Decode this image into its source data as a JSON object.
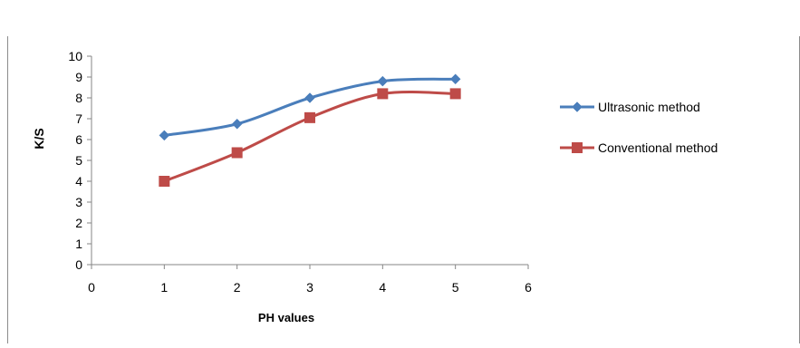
{
  "chart_data": {
    "type": "line",
    "title": "",
    "xlabel": "PH values",
    "ylabel": "K/S",
    "xlim": [
      0,
      6
    ],
    "ylim": [
      0,
      10
    ],
    "xticks": [
      0,
      1,
      2,
      3,
      4,
      5,
      6
    ],
    "yticks": [
      0,
      1,
      2,
      3,
      4,
      5,
      6,
      7,
      8,
      9,
      10
    ],
    "grid": false,
    "legend_position": "right",
    "series": [
      {
        "name": "Ultrasonic method",
        "color": "#4a7ebb",
        "marker": "diamond",
        "x": [
          1,
          2,
          3,
          4,
          5
        ],
        "y": [
          6.2,
          6.75,
          8.0,
          8.8,
          8.9
        ]
      },
      {
        "name": "Conventional method",
        "color": "#be4b48",
        "marker": "square",
        "x": [
          1,
          2,
          3,
          4,
          5
        ],
        "y": [
          4.0,
          5.37,
          7.05,
          8.2,
          8.2
        ]
      }
    ]
  }
}
